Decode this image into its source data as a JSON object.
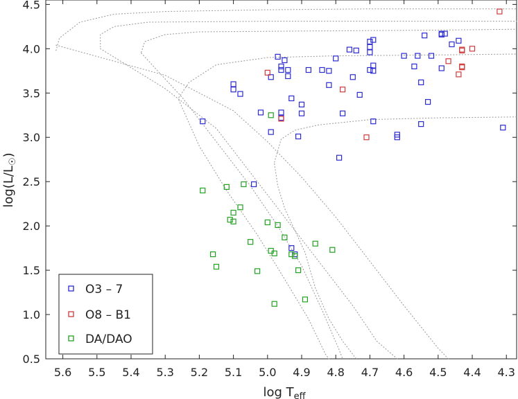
{
  "chart_data": {
    "type": "scatter",
    "xlabel": {
      "main": "log T",
      "sub": "eff"
    },
    "ylabel": {
      "main": "log(L/L",
      "sun": "☉",
      "close": ")"
    },
    "xlim": [
      5.65,
      4.27
    ],
    "ylim": [
      0.5,
      4.55
    ],
    "x_ticks": [
      5.6,
      5.5,
      5.4,
      5.3,
      5.2,
      5.1,
      5.0,
      4.9,
      4.8,
      4.7,
      4.6,
      4.5,
      4.4,
      4.3
    ],
    "x_tick_labels": [
      "5.6",
      "5.5",
      "5.4",
      "5.3",
      "5.2",
      "5.1",
      "5.0",
      "4.9",
      "4.8",
      "4.7",
      "4.6",
      "4.5",
      "4.4",
      "4.3"
    ],
    "y_ticks": [
      0.5,
      1.0,
      1.5,
      2.0,
      2.5,
      3.0,
      3.5,
      4.0,
      4.5
    ],
    "y_tick_labels": [
      "0.5",
      "1.0",
      "1.5",
      "2.0",
      "2.5",
      "3.0",
      "3.5",
      "4.0",
      "4.5"
    ],
    "grid": false,
    "legend_position": "bottom-left",
    "series": [
      {
        "name": "O3 – 7",
        "color": "#2a2ad0",
        "marker": "open-square",
        "points": [
          [
            5.19,
            3.18
          ],
          [
            5.1,
            3.6
          ],
          [
            5.1,
            3.54
          ],
          [
            5.08,
            3.49
          ],
          [
            5.02,
            3.28
          ],
          [
            4.99,
            3.06
          ],
          [
            4.99,
            3.68
          ],
          [
            4.97,
            3.91
          ],
          [
            4.96,
            3.8
          ],
          [
            4.96,
            3.76
          ],
          [
            4.95,
            3.87
          ],
          [
            4.94,
            3.76
          ],
          [
            4.96,
            3.28
          ],
          [
            4.96,
            3.22
          ],
          [
            4.94,
            3.69
          ],
          [
            4.93,
            3.44
          ],
          [
            4.9,
            3.27
          ],
          [
            4.9,
            3.37
          ],
          [
            4.88,
            3.76
          ],
          [
            4.91,
            3.01
          ],
          [
            4.84,
            3.76
          ],
          [
            4.82,
            3.75
          ],
          [
            4.82,
            3.59
          ],
          [
            4.8,
            3.89
          ],
          [
            4.78,
            3.27
          ],
          [
            4.79,
            2.77
          ],
          [
            4.76,
            3.99
          ],
          [
            4.75,
            3.68
          ],
          [
            4.74,
            3.98
          ],
          [
            4.73,
            3.48
          ],
          [
            4.7,
            4.08
          ],
          [
            4.7,
            4.02
          ],
          [
            4.7,
            3.96
          ],
          [
            4.7,
            3.76
          ],
          [
            4.69,
            3.81
          ],
          [
            4.69,
            3.75
          ],
          [
            4.69,
            4.1
          ],
          [
            4.69,
            3.18
          ],
          [
            4.62,
            3.03
          ],
          [
            4.62,
            3.0
          ],
          [
            4.6,
            3.92
          ],
          [
            4.57,
            3.8
          ],
          [
            4.56,
            3.92
          ],
          [
            4.55,
            3.62
          ],
          [
            4.55,
            3.15
          ],
          [
            4.54,
            4.15
          ],
          [
            4.53,
            3.4
          ],
          [
            4.52,
            3.92
          ],
          [
            4.49,
            4.16
          ],
          [
            4.49,
            4.17
          ],
          [
            4.48,
            4.17
          ],
          [
            4.49,
            3.78
          ],
          [
            4.46,
            4.05
          ],
          [
            4.44,
            4.09
          ],
          [
            4.31,
            3.11
          ],
          [
            4.93,
            1.75
          ],
          [
            5.04,
            2.47
          ],
          [
            4.92,
            1.68
          ]
        ]
      },
      {
        "name": "O8 – B1",
        "color": "#d03a3a",
        "marker": "open-square",
        "points": [
          [
            5.0,
            3.73
          ],
          [
            4.96,
            3.21
          ],
          [
            4.78,
            3.54
          ],
          [
            4.71,
            3.0
          ],
          [
            4.47,
            3.86
          ],
          [
            4.44,
            3.71
          ],
          [
            4.43,
            3.8
          ],
          [
            4.43,
            3.79
          ],
          [
            4.43,
            3.99
          ],
          [
            4.43,
            3.98
          ],
          [
            4.4,
            4.0
          ],
          [
            4.32,
            4.42
          ]
        ]
      },
      {
        "name": "DA/DAO",
        "color": "#22a022",
        "marker": "open-square",
        "points": [
          [
            5.19,
            2.4
          ],
          [
            5.16,
            1.68
          ],
          [
            5.15,
            1.54
          ],
          [
            5.12,
            2.44
          ],
          [
            5.11,
            2.07
          ],
          [
            5.1,
            2.15
          ],
          [
            5.1,
            2.05
          ],
          [
            5.08,
            2.21
          ],
          [
            5.07,
            2.47
          ],
          [
            5.05,
            1.82
          ],
          [
            5.03,
            1.49
          ],
          [
            5.0,
            2.04
          ],
          [
            4.99,
            1.72
          ],
          [
            4.98,
            1.69
          ],
          [
            4.97,
            2.01
          ],
          [
            4.98,
            1.12
          ],
          [
            4.95,
            1.87
          ],
          [
            4.93,
            1.68
          ],
          [
            4.92,
            1.66
          ],
          [
            4.91,
            1.5
          ],
          [
            4.89,
            1.17
          ],
          [
            4.86,
            1.8
          ],
          [
            4.81,
            1.73
          ],
          [
            4.99,
            3.25
          ]
        ]
      }
    ],
    "tracks": [
      [
        [
          5.62,
          3.98
        ],
        [
          5.61,
          4.12
        ],
        [
          5.55,
          4.3
        ],
        [
          5.45,
          4.39
        ],
        [
          5.3,
          4.42
        ],
        [
          5.0,
          4.44
        ],
        [
          4.7,
          4.45
        ],
        [
          4.27,
          4.45
        ]
      ],
      [
        [
          5.62,
          4.04
        ],
        [
          5.3,
          3.7
        ],
        [
          5.1,
          3.3
        ],
        [
          5.0,
          2.95
        ],
        [
          4.9,
          2.55
        ],
        [
          4.8,
          2.1
        ],
        [
          4.7,
          1.6
        ],
        [
          4.6,
          1.1
        ],
        [
          4.5,
          0.62
        ],
        [
          4.47,
          0.5
        ]
      ],
      [
        [
          5.49,
          4.02
        ],
        [
          5.49,
          4.16
        ],
        [
          5.45,
          4.25
        ],
        [
          5.35,
          4.3
        ],
        [
          5.0,
          4.31
        ],
        [
          4.6,
          4.31
        ],
        [
          4.27,
          4.31
        ]
      ],
      [
        [
          5.49,
          4.0
        ],
        [
          5.3,
          3.55
        ],
        [
          5.15,
          3.1
        ],
        [
          5.05,
          2.6
        ],
        [
          4.95,
          2.1
        ],
        [
          4.85,
          1.6
        ],
        [
          4.75,
          1.1
        ],
        [
          4.68,
          0.7
        ],
        [
          4.62,
          0.5
        ]
      ],
      [
        [
          5.37,
          3.96
        ],
        [
          5.36,
          4.08
        ],
        [
          5.3,
          4.16
        ],
        [
          5.2,
          4.19
        ],
        [
          4.9,
          4.2
        ],
        [
          4.5,
          4.21
        ],
        [
          4.27,
          4.22
        ]
      ],
      [
        [
          5.37,
          3.95
        ],
        [
          5.25,
          3.45
        ],
        [
          5.15,
          2.95
        ],
        [
          5.05,
          2.45
        ],
        [
          4.97,
          2.0
        ],
        [
          4.9,
          1.55
        ],
        [
          4.84,
          1.05
        ],
        [
          4.79,
          0.6
        ],
        [
          4.78,
          0.5
        ]
      ],
      [
        [
          5.26,
          3.45
        ],
        [
          5.23,
          3.62
        ],
        [
          5.15,
          3.82
        ],
        [
          5.0,
          3.9
        ],
        [
          4.8,
          3.92
        ],
        [
          4.5,
          3.93
        ],
        [
          4.27,
          3.94
        ]
      ],
      [
        [
          5.26,
          3.42
        ],
        [
          5.2,
          2.9
        ],
        [
          5.12,
          2.4
        ],
        [
          5.03,
          1.9
        ],
        [
          4.95,
          1.4
        ],
        [
          4.88,
          0.95
        ],
        [
          4.83,
          0.55
        ],
        [
          4.82,
          0.5
        ]
      ],
      [
        [
          4.98,
          2.72
        ],
        [
          4.96,
          2.98
        ],
        [
          4.92,
          3.08
        ],
        [
          4.85,
          3.14
        ],
        [
          4.7,
          3.2
        ],
        [
          4.5,
          3.22
        ],
        [
          4.27,
          3.23
        ]
      ],
      [
        [
          4.98,
          2.7
        ],
        [
          4.97,
          2.45
        ],
        [
          4.95,
          2.2
        ],
        [
          4.92,
          1.95
        ],
        [
          4.89,
          1.7
        ],
        [
          4.86,
          1.3
        ],
        [
          4.82,
          0.95
        ],
        [
          4.78,
          0.7
        ],
        [
          4.74,
          0.5
        ]
      ]
    ]
  }
}
